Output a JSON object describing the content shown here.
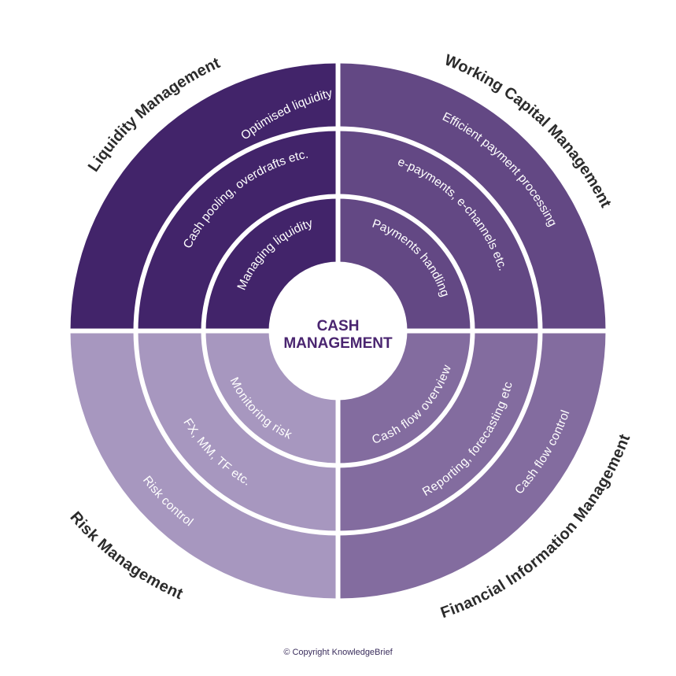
{
  "center": {
    "line1": "CASH",
    "line2": "MANAGEMENT"
  },
  "quadrants": [
    {
      "key": "liquidity",
      "title": "Liquidity Management",
      "color": "#42246a",
      "rings": [
        "Optimised liquidity",
        "Cash pooling, overdrafts etc.",
        "Managing liquidity"
      ]
    },
    {
      "key": "working-capital",
      "title": "Working Capital Management",
      "color": "#634884",
      "rings": [
        "Efficient payment processing",
        "e-payments, e-channels etc.",
        "Payments handling"
      ]
    },
    {
      "key": "financial-information",
      "title": "Financial Information Management",
      "color": "#836c9f",
      "rings": [
        "Cash flow control",
        "Reporting, forecasting etc",
        "Cash flow overview"
      ]
    },
    {
      "key": "risk",
      "title": "Risk Management",
      "color": "#a797bf",
      "rings": [
        "Risk control",
        "FX, MM, TF etc.",
        "Monitoring risk"
      ]
    }
  ],
  "copyright": "© Copyright KnowledgeBrief"
}
